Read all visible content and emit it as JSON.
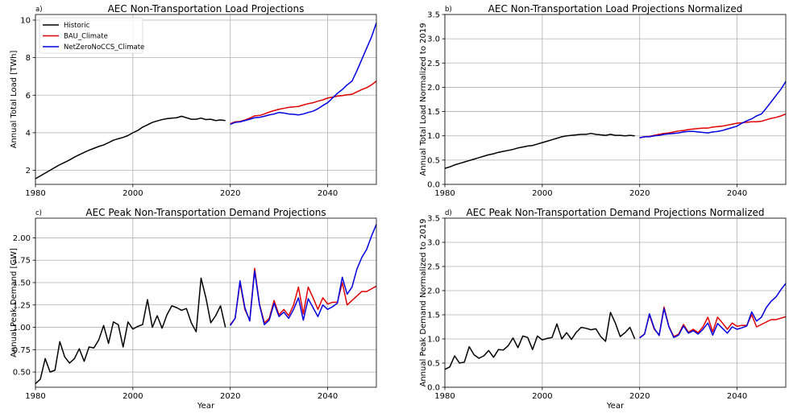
{
  "chart_data": [
    {
      "panel_label": "a)",
      "type": "line",
      "title": "AEC Non-Transportation Load Projections",
      "xlabel": "",
      "ylabel": "Annual Total Load [TWh]",
      "xlim": [
        1980,
        2050
      ],
      "ylim": [
        1.25,
        10.3
      ],
      "xticks": [
        1980,
        2000,
        2020,
        2040
      ],
      "yticks": [
        2,
        4,
        6,
        8,
        10
      ],
      "ytick_labels": [
        "2",
        "4",
        "6",
        "8",
        "10"
      ],
      "grid": true,
      "legend": "top-left",
      "series": [
        {
          "name": "Historic",
          "color": "#000000",
          "x": [
            1980,
            1981,
            1982,
            1983,
            1984,
            1985,
            1986,
            1987,
            1988,
            1989,
            1990,
            1991,
            1992,
            1993,
            1994,
            1995,
            1996,
            1997,
            1998,
            1999,
            2000,
            2001,
            2002,
            2003,
            2004,
            2005,
            2006,
            2007,
            2008,
            2009,
            2010,
            2011,
            2012,
            2013,
            2014,
            2015,
            2016,
            2017,
            2018,
            2019
          ],
          "y": [
            1.55,
            1.7,
            1.85,
            2.0,
            2.15,
            2.3,
            2.42,
            2.55,
            2.7,
            2.83,
            2.95,
            3.07,
            3.17,
            3.27,
            3.35,
            3.47,
            3.6,
            3.68,
            3.75,
            3.85,
            4.0,
            4.12,
            4.3,
            4.42,
            4.55,
            4.63,
            4.7,
            4.75,
            4.78,
            4.8,
            4.88,
            4.8,
            4.72,
            4.72,
            4.78,
            4.7,
            4.72,
            4.65,
            4.68,
            4.65
          ]
        },
        {
          "name": "BAU_Climate",
          "color": "#e00000",
          "x": [
            2020,
            2021,
            2022,
            2023,
            2024,
            2025,
            2026,
            2027,
            2028,
            2029,
            2030,
            2031,
            2032,
            2033,
            2034,
            2035,
            2036,
            2037,
            2038,
            2039,
            2040,
            2041,
            2042,
            2043,
            2044,
            2045,
            2046,
            2047,
            2048,
            2049,
            2050
          ],
          "y": [
            4.48,
            4.58,
            4.6,
            4.68,
            4.78,
            4.9,
            4.92,
            5.0,
            5.1,
            5.18,
            5.25,
            5.3,
            5.35,
            5.38,
            5.4,
            5.48,
            5.55,
            5.6,
            5.68,
            5.75,
            5.85,
            5.9,
            5.95,
            5.98,
            6.02,
            6.05,
            6.18,
            6.3,
            6.4,
            6.55,
            6.75
          ]
        },
        {
          "name": "NetZeroNoCCS_Climate",
          "color": "#0000e0",
          "x": [
            2020,
            2021,
            2022,
            2023,
            2024,
            2025,
            2026,
            2027,
            2028,
            2029,
            2030,
            2031,
            2032,
            2033,
            2034,
            2035,
            2036,
            2037,
            2038,
            2039,
            2040,
            2041,
            2042,
            2043,
            2044,
            2045,
            2046,
            2047,
            2048,
            2049,
            2050
          ],
          "y": [
            4.45,
            4.55,
            4.58,
            4.65,
            4.72,
            4.8,
            4.82,
            4.88,
            4.95,
            5.0,
            5.08,
            5.05,
            5.0,
            4.98,
            4.95,
            5.0,
            5.08,
            5.15,
            5.28,
            5.45,
            5.6,
            5.85,
            6.1,
            6.3,
            6.55,
            6.75,
            7.3,
            7.9,
            8.5,
            9.1,
            9.85
          ]
        }
      ]
    },
    {
      "panel_label": "b)",
      "type": "line",
      "title": "AEC Non-Transportation Load Projections Normalized",
      "xlabel": "",
      "ylabel": "Annual Total Load Normalized to 2019",
      "xlim": [
        1980,
        2050
      ],
      "ylim": [
        0,
        3.5
      ],
      "xticks": [
        1980,
        2000,
        2020,
        2040
      ],
      "yticks": [
        0,
        0.5,
        1.0,
        1.5,
        2.0,
        2.5,
        3.0,
        3.5
      ],
      "ytick_labels": [
        "0.0",
        "0.5",
        "1.0",
        "1.5",
        "2.0",
        "2.5",
        "3.0",
        "3.5"
      ],
      "grid": true,
      "series": [
        {
          "name": "Historic",
          "color": "#000000",
          "x": [
            1980,
            1981,
            1982,
            1983,
            1984,
            1985,
            1986,
            1987,
            1988,
            1989,
            1990,
            1991,
            1992,
            1993,
            1994,
            1995,
            1996,
            1997,
            1998,
            1999,
            2000,
            2001,
            2002,
            2003,
            2004,
            2005,
            2006,
            2007,
            2008,
            2009,
            2010,
            2011,
            2012,
            2013,
            2014,
            2015,
            2016,
            2017,
            2018,
            2019
          ],
          "y": [
            0.33,
            0.36,
            0.4,
            0.43,
            0.46,
            0.49,
            0.52,
            0.55,
            0.58,
            0.61,
            0.63,
            0.66,
            0.68,
            0.7,
            0.72,
            0.75,
            0.77,
            0.79,
            0.8,
            0.83,
            0.86,
            0.89,
            0.92,
            0.95,
            0.98,
            1.0,
            1.01,
            1.02,
            1.03,
            1.03,
            1.05,
            1.03,
            1.02,
            1.01,
            1.03,
            1.01,
            1.01,
            1.0,
            1.01,
            1.0
          ]
        },
        {
          "name": "BAU_Climate",
          "color": "#e00000",
          "x": [
            2020,
            2021,
            2022,
            2023,
            2024,
            2025,
            2026,
            2027,
            2028,
            2029,
            2030,
            2031,
            2032,
            2033,
            2034,
            2035,
            2036,
            2037,
            2038,
            2039,
            2040,
            2041,
            2042,
            2043,
            2044,
            2045,
            2046,
            2047,
            2048,
            2049,
            2050
          ],
          "y": [
            0.96,
            0.98,
            0.99,
            1.01,
            1.03,
            1.05,
            1.06,
            1.08,
            1.1,
            1.11,
            1.13,
            1.14,
            1.15,
            1.16,
            1.16,
            1.18,
            1.19,
            1.2,
            1.22,
            1.24,
            1.26,
            1.27,
            1.28,
            1.29,
            1.29,
            1.3,
            1.33,
            1.36,
            1.38,
            1.41,
            1.45
          ]
        },
        {
          "name": "NetZeroNoCCS_Climate",
          "color": "#0000e0",
          "x": [
            2020,
            2021,
            2022,
            2023,
            2024,
            2025,
            2026,
            2027,
            2028,
            2029,
            2030,
            2031,
            2032,
            2033,
            2034,
            2035,
            2036,
            2037,
            2038,
            2039,
            2040,
            2041,
            2042,
            2043,
            2044,
            2045,
            2046,
            2047,
            2048,
            2049,
            2050
          ],
          "y": [
            0.96,
            0.98,
            0.98,
            1.0,
            1.01,
            1.03,
            1.04,
            1.05,
            1.06,
            1.08,
            1.09,
            1.09,
            1.08,
            1.07,
            1.06,
            1.08,
            1.09,
            1.11,
            1.14,
            1.17,
            1.2,
            1.26,
            1.31,
            1.35,
            1.41,
            1.45,
            1.57,
            1.7,
            1.83,
            1.96,
            2.12
          ]
        }
      ]
    },
    {
      "panel_label": "c)",
      "type": "line",
      "title": "AEC Peak Non-Transportation Demand Projections",
      "xlabel": "Year",
      "ylabel": "Annual Peak Demand [GW]",
      "xlim": [
        1980,
        2050
      ],
      "ylim": [
        0.33,
        2.22
      ],
      "xticks": [
        1980,
        2000,
        2020,
        2040
      ],
      "yticks": [
        0.5,
        0.75,
        1.0,
        1.25,
        1.5,
        1.75,
        2.0
      ],
      "ytick_labels": [
        "0.50",
        "0.75",
        "1.00",
        "1.25",
        "1.50",
        "1.75",
        "2.00"
      ],
      "grid": true,
      "series": [
        {
          "name": "Historic",
          "color": "#000000",
          "x": [
            1980,
            1981,
            1982,
            1983,
            1984,
            1985,
            1986,
            1987,
            1988,
            1989,
            1990,
            1991,
            1992,
            1993,
            1994,
            1995,
            1996,
            1997,
            1998,
            1999,
            2000,
            2001,
            2002,
            2003,
            2004,
            2005,
            2006,
            2007,
            2008,
            2009,
            2010,
            2011,
            2012,
            2013,
            2014,
            2015,
            2016,
            2017,
            2018,
            2019
          ],
          "y": [
            0.37,
            0.42,
            0.65,
            0.5,
            0.52,
            0.84,
            0.67,
            0.6,
            0.65,
            0.76,
            0.62,
            0.78,
            0.77,
            0.86,
            1.02,
            0.82,
            1.06,
            1.03,
            0.78,
            1.06,
            0.98,
            1.01,
            1.03,
            1.31,
            1.0,
            1.13,
            0.99,
            1.14,
            1.24,
            1.22,
            1.19,
            1.21,
            1.05,
            0.95,
            1.55,
            1.33,
            1.05,
            1.13,
            1.24,
            1.0
          ]
        },
        {
          "name": "BAU_Climate",
          "color": "#e00000",
          "x": [
            2020,
            2021,
            2022,
            2023,
            2024,
            2025,
            2026,
            2027,
            2028,
            2029,
            2030,
            2031,
            2032,
            2033,
            2034,
            2035,
            2036,
            2037,
            2038,
            2039,
            2040,
            2041,
            2042,
            2043,
            2044,
            2045,
            2046,
            2047,
            2048,
            2049,
            2050
          ],
          "y": [
            1.03,
            1.1,
            1.5,
            1.2,
            1.08,
            1.66,
            1.26,
            1.05,
            1.1,
            1.3,
            1.14,
            1.2,
            1.13,
            1.25,
            1.45,
            1.15,
            1.45,
            1.33,
            1.2,
            1.33,
            1.26,
            1.28,
            1.28,
            1.5,
            1.25,
            1.3,
            1.35,
            1.4,
            1.4,
            1.43,
            1.46
          ]
        },
        {
          "name": "NetZeroNoCCS_Climate",
          "color": "#0000e0",
          "x": [
            2020,
            2021,
            2022,
            2023,
            2024,
            2025,
            2026,
            2027,
            2028,
            2029,
            2030,
            2031,
            2032,
            2033,
            2034,
            2035,
            2036,
            2037,
            2038,
            2039,
            2040,
            2041,
            2042,
            2043,
            2044,
            2045,
            2046,
            2047,
            2048,
            2049,
            2050
          ],
          "y": [
            1.02,
            1.1,
            1.52,
            1.22,
            1.07,
            1.63,
            1.25,
            1.03,
            1.08,
            1.27,
            1.12,
            1.17,
            1.1,
            1.2,
            1.33,
            1.08,
            1.32,
            1.22,
            1.12,
            1.25,
            1.2,
            1.23,
            1.27,
            1.56,
            1.37,
            1.45,
            1.65,
            1.78,
            1.87,
            2.02,
            2.15
          ]
        }
      ]
    },
    {
      "panel_label": "d)",
      "type": "line",
      "title": "AEC Peak Non-Transportation Demand Projections Normalized",
      "xlabel": "Year",
      "ylabel": "Annual Peak Demand Normalized to 2019",
      "xlim": [
        1980,
        2050
      ],
      "ylim": [
        0,
        3.5
      ],
      "xticks": [
        1980,
        2000,
        2020,
        2040
      ],
      "yticks": [
        0,
        0.5,
        1.0,
        1.5,
        2.0,
        2.5,
        3.0,
        3.5
      ],
      "ytick_labels": [
        "0.0",
        "0.5",
        "1.0",
        "1.5",
        "2.0",
        "2.5",
        "3.0",
        "3.5"
      ],
      "grid": true,
      "series": [
        {
          "name": "Historic",
          "color": "#000000",
          "x": [
            1980,
            1981,
            1982,
            1983,
            1984,
            1985,
            1986,
            1987,
            1988,
            1989,
            1990,
            1991,
            1992,
            1993,
            1994,
            1995,
            1996,
            1997,
            1998,
            1999,
            2000,
            2001,
            2002,
            2003,
            2004,
            2005,
            2006,
            2007,
            2008,
            2009,
            2010,
            2011,
            2012,
            2013,
            2014,
            2015,
            2016,
            2017,
            2018,
            2019
          ],
          "y": [
            0.37,
            0.42,
            0.65,
            0.5,
            0.52,
            0.84,
            0.67,
            0.6,
            0.65,
            0.76,
            0.62,
            0.78,
            0.77,
            0.86,
            1.02,
            0.82,
            1.06,
            1.03,
            0.78,
            1.06,
            0.98,
            1.01,
            1.03,
            1.31,
            1.0,
            1.13,
            0.99,
            1.14,
            1.24,
            1.22,
            1.19,
            1.21,
            1.05,
            0.95,
            1.55,
            1.33,
            1.05,
            1.13,
            1.24,
            1.0
          ]
        },
        {
          "name": "BAU_Climate",
          "color": "#e00000",
          "x": [
            2020,
            2021,
            2022,
            2023,
            2024,
            2025,
            2026,
            2027,
            2028,
            2029,
            2030,
            2031,
            2032,
            2033,
            2034,
            2035,
            2036,
            2037,
            2038,
            2039,
            2040,
            2041,
            2042,
            2043,
            2044,
            2045,
            2046,
            2047,
            2048,
            2049,
            2050
          ],
          "y": [
            1.03,
            1.1,
            1.5,
            1.2,
            1.08,
            1.66,
            1.26,
            1.05,
            1.1,
            1.3,
            1.14,
            1.2,
            1.13,
            1.25,
            1.45,
            1.15,
            1.45,
            1.33,
            1.2,
            1.33,
            1.26,
            1.28,
            1.28,
            1.5,
            1.25,
            1.3,
            1.35,
            1.4,
            1.4,
            1.43,
            1.46
          ]
        },
        {
          "name": "NetZeroNoCCS_Climate",
          "color": "#0000e0",
          "x": [
            2020,
            2021,
            2022,
            2023,
            2024,
            2025,
            2026,
            2027,
            2028,
            2029,
            2030,
            2031,
            2032,
            2033,
            2034,
            2035,
            2036,
            2037,
            2038,
            2039,
            2040,
            2041,
            2042,
            2043,
            2044,
            2045,
            2046,
            2047,
            2048,
            2049,
            2050
          ],
          "y": [
            1.02,
            1.1,
            1.52,
            1.22,
            1.07,
            1.63,
            1.25,
            1.03,
            1.08,
            1.27,
            1.12,
            1.17,
            1.1,
            1.2,
            1.33,
            1.08,
            1.32,
            1.22,
            1.12,
            1.25,
            1.2,
            1.23,
            1.27,
            1.56,
            1.37,
            1.45,
            1.65,
            1.78,
            1.87,
            2.02,
            2.15
          ]
        }
      ]
    }
  ]
}
